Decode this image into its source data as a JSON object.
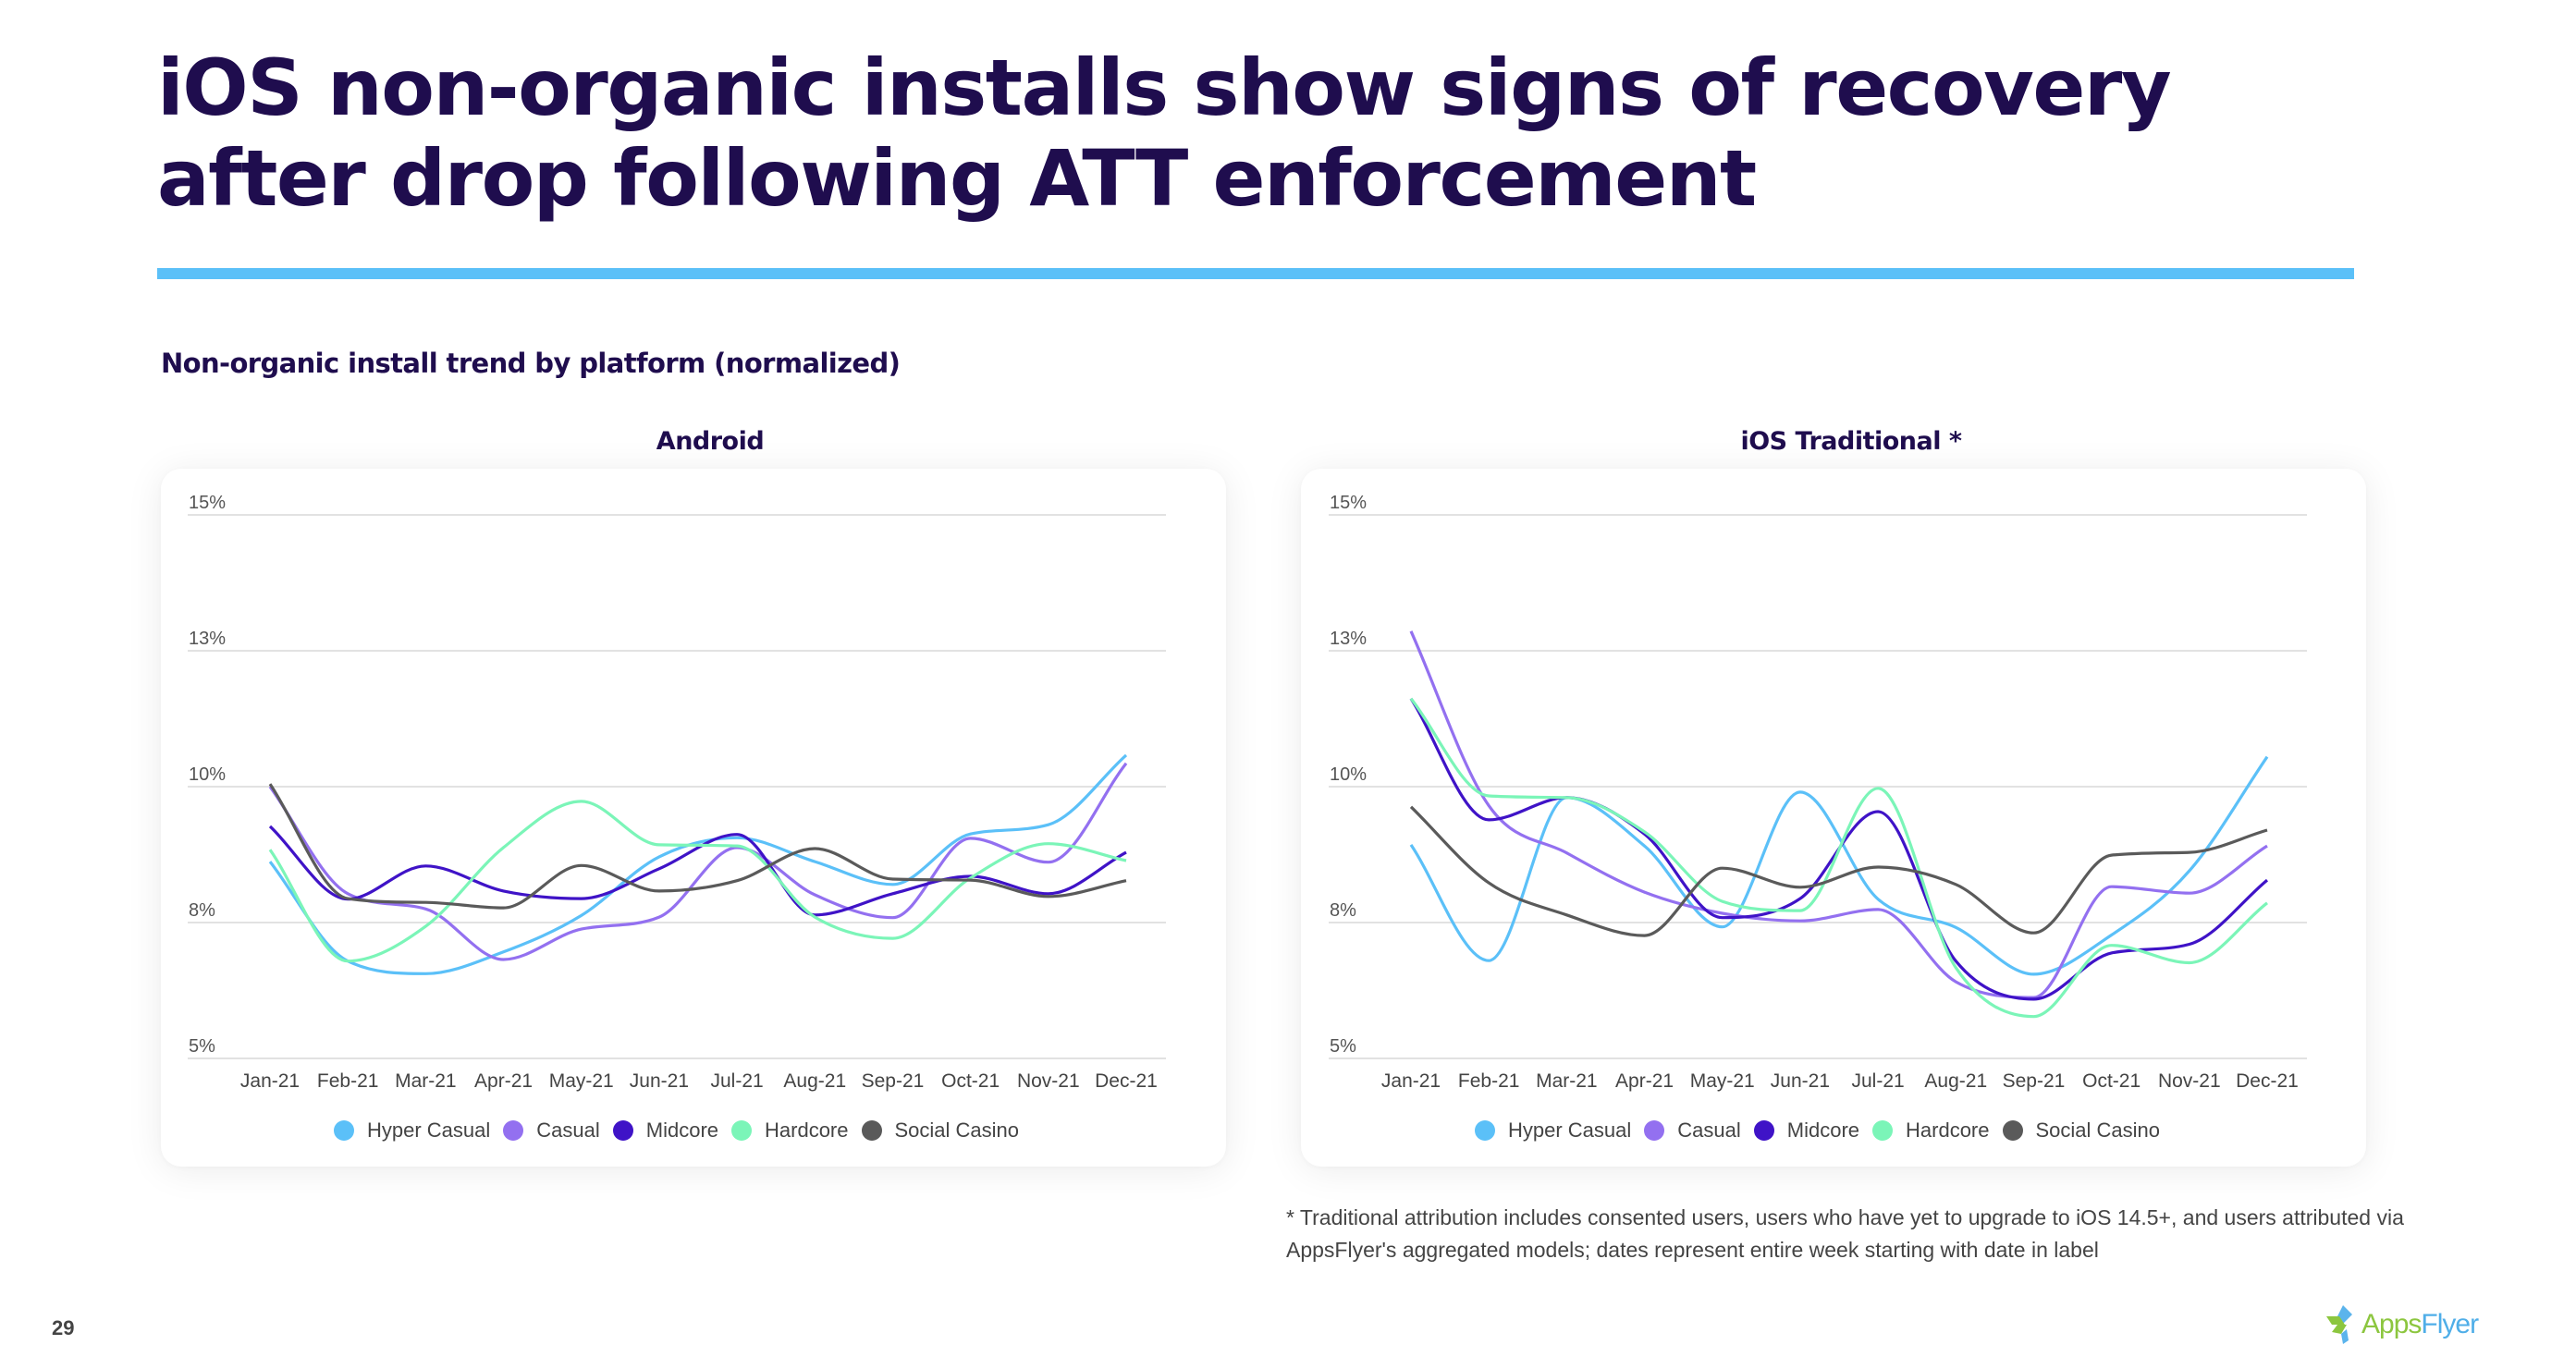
{
  "page": {
    "title": "iOS non-organic installs show signs of recovery after drop following ATT enforcement",
    "subtitle": "Non-organic install trend by platform (normalized)",
    "footnote": "* Traditional attribution includes consented users, users who have yet to upgrade to iOS 14.5+, and users attributed via AppsFlyer's aggregated models; dates represent entire week starting with date in label",
    "page_number": "29",
    "logo": {
      "part1": "Apps",
      "part2": "Flyer",
      "icon": "appsflyer-logo-icon"
    },
    "accent_color": "#5bc0f8"
  },
  "chart_data": [
    {
      "type": "line",
      "title": "Android",
      "xlabel": "",
      "ylabel": "",
      "categories": [
        "Jan-21",
        "Feb-21",
        "Mar-21",
        "Apr-21",
        "May-21",
        "Jun-21",
        "Jul-21",
        "Aug-21",
        "Sep-21",
        "Oct-21",
        "Nov-21",
        "Dec-21"
      ],
      "ylim": [
        5,
        15
      ],
      "yticks": [
        5,
        7.5,
        10,
        12.5,
        15
      ],
      "ytick_labels": [
        "5%",
        "8%",
        "10%",
        "13%",
        "15%"
      ],
      "grid": true,
      "legend_position": "bottom",
      "series": [
        {
          "name": "Hyper Casual",
          "color": "#5bc0f8",
          "values": [
            8.62,
            6.79,
            6.56,
            6.96,
            7.63,
            8.71,
            9.06,
            8.62,
            8.2,
            9.13,
            9.3,
            10.58
          ]
        },
        {
          "name": "Casual",
          "color": "#9370f0",
          "values": [
            10.0,
            8.03,
            7.75,
            6.82,
            7.38,
            7.6,
            8.88,
            8.01,
            7.59,
            9.05,
            8.61,
            10.43
          ]
        },
        {
          "name": "Midcore",
          "color": "#3f13c7",
          "values": [
            9.27,
            7.93,
            8.54,
            8.08,
            7.94,
            8.49,
            9.12,
            7.64,
            8.03,
            8.35,
            8.03,
            8.79
          ]
        },
        {
          "name": "Hardcore",
          "color": "#7bf5b8",
          "values": [
            8.84,
            6.79,
            7.43,
            8.88,
            9.73,
            8.93,
            8.91,
            7.6,
            7.21,
            8.32,
            8.95,
            8.64
          ]
        },
        {
          "name": "Social Casino",
          "color": "#5a5a5a",
          "values": [
            10.05,
            7.94,
            7.87,
            7.77,
            8.55,
            8.08,
            8.27,
            8.86,
            8.3,
            8.28,
            7.98,
            8.27
          ]
        }
      ]
    },
    {
      "type": "line",
      "title": "iOS Traditional *",
      "xlabel": "",
      "ylabel": "",
      "categories": [
        "Jan-21",
        "Feb-21",
        "Mar-21",
        "Apr-21",
        "May-21",
        "Jun-21",
        "Jul-21",
        "Aug-21",
        "Sep-21",
        "Oct-21",
        "Nov-21",
        "Dec-21"
      ],
      "ylim": [
        5,
        15
      ],
      "yticks": [
        5,
        7.5,
        10,
        12.5,
        15
      ],
      "ytick_labels": [
        "5%",
        "8%",
        "10%",
        "13%",
        "15%"
      ],
      "grid": true,
      "legend_position": "bottom",
      "series": [
        {
          "name": "Hyper Casual",
          "color": "#5bc0f8",
          "values": [
            8.93,
            6.8,
            9.8,
            8.91,
            7.42,
            9.9,
            7.93,
            7.41,
            6.55,
            7.27,
            8.45,
            10.55
          ]
        },
        {
          "name": "Casual",
          "color": "#9370f0",
          "values": [
            12.86,
            9.65,
            8.78,
            8.06,
            7.67,
            7.53,
            7.74,
            6.41,
            6.12,
            8.16,
            8.04,
            8.91
          ]
        },
        {
          "name": "Midcore",
          "color": "#3f13c7",
          "values": [
            11.62,
            9.39,
            9.8,
            9.13,
            7.59,
            7.94,
            9.54,
            6.79,
            6.09,
            6.94,
            7.1,
            8.28
          ]
        },
        {
          "name": "Hardcore",
          "color": "#7bf5b8",
          "values": [
            11.62,
            9.83,
            9.8,
            9.17,
            7.89,
            7.72,
            9.97,
            6.67,
            5.77,
            7.08,
            6.76,
            7.86
          ]
        },
        {
          "name": "Social Casino",
          "color": "#5a5a5a",
          "values": [
            9.63,
            8.23,
            7.64,
            7.26,
            8.5,
            8.15,
            8.52,
            8.2,
            7.31,
            8.74,
            8.79,
            9.2
          ]
        }
      ]
    }
  ]
}
